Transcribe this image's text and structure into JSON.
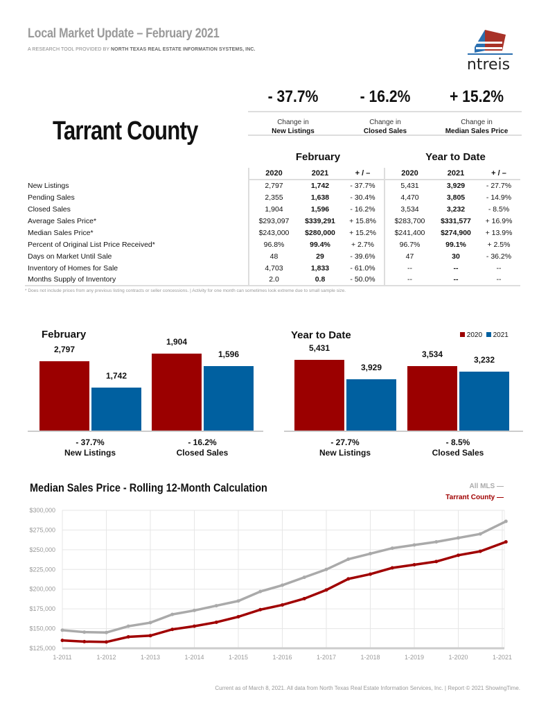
{
  "header": {
    "title": "Local Market Update – February 2021",
    "subtitle_prefix": "A RESEARCH TOOL PROVIDED BY ",
    "subtitle_org": "NORTH TEXAS REAL ESTATE INFORMATION SYSTEMS, INC.",
    "logo_text": "ntreis",
    "area": "Tarrant County"
  },
  "kpis": [
    {
      "value": "- 37.7%",
      "line1": "Change in",
      "line2": "New Listings"
    },
    {
      "value": "- 16.2%",
      "line1": "Change in",
      "line2": "Closed Sales"
    },
    {
      "value": "+ 15.2%",
      "line1": "Change in",
      "line2": "Median Sales Price"
    }
  ],
  "table": {
    "group1": "February",
    "group2": "Year to Date",
    "columns": [
      "2020",
      "2021",
      "+ / –",
      "2020",
      "2021",
      "+ / –"
    ],
    "rows": [
      {
        "label": "New Listings",
        "v": [
          "2,797",
          "1,742",
          "- 37.7%",
          "5,431",
          "3,929",
          "- 27.7%"
        ]
      },
      {
        "label": "Pending Sales",
        "v": [
          "2,355",
          "1,638",
          "- 30.4%",
          "4,470",
          "3,805",
          "- 14.9%"
        ]
      },
      {
        "label": "Closed Sales",
        "v": [
          "1,904",
          "1,596",
          "- 16.2%",
          "3,534",
          "3,232",
          "- 8.5%"
        ]
      },
      {
        "label": "Average Sales Price*",
        "v": [
          "$293,097",
          "$339,291",
          "+ 15.8%",
          "$283,700",
          "$331,577",
          "+ 16.9%"
        ]
      },
      {
        "label": "Median Sales Price*",
        "v": [
          "$243,000",
          "$280,000",
          "+ 15.2%",
          "$241,400",
          "$274,900",
          "+ 13.9%"
        ]
      },
      {
        "label": "Percent of Original List Price Received*",
        "v": [
          "96.8%",
          "99.4%",
          "+ 2.7%",
          "96.7%",
          "99.1%",
          "+ 2.5%"
        ]
      },
      {
        "label": "Days on Market Until Sale",
        "v": [
          "48",
          "29",
          "- 39.6%",
          "47",
          "30",
          "- 36.2%"
        ]
      },
      {
        "label": "Inventory of Homes for Sale",
        "v": [
          "4,703",
          "1,833",
          "- 61.0%",
          "--",
          "--",
          "--"
        ]
      },
      {
        "label": "Months Supply of Inventory",
        "v": [
          "2.0",
          "0.8",
          "- 50.0%",
          "--",
          "--",
          "--"
        ]
      }
    ],
    "note": "* Does not include prices from any previous listing contracts or seller concessions. | Activity for one month can sometimes look extreme due to small sample size."
  },
  "chart_data": [
    {
      "type": "bar",
      "title": "February",
      "colors": {
        "2020": "#9b0000",
        "2021": "#0060a0"
      },
      "groups": [
        {
          "change": "- 37.7%",
          "label": "New Listings",
          "values": [
            2797,
            1742
          ],
          "labels": [
            "2,797",
            "1,742"
          ]
        },
        {
          "change": "- 16.2%",
          "label": "Closed Sales",
          "values": [
            1904,
            1596
          ],
          "labels": [
            "1,904",
            "1,596"
          ]
        }
      ]
    },
    {
      "type": "bar",
      "title": "Year to Date",
      "legend": [
        "2020",
        "2021"
      ],
      "legend_position": "top-right",
      "colors": {
        "2020": "#9b0000",
        "2021": "#0060a0"
      },
      "groups": [
        {
          "change": "- 27.7%",
          "label": "New Listings",
          "values": [
            5431,
            3929
          ],
          "labels": [
            "5,431",
            "3,929"
          ]
        },
        {
          "change": "- 8.5%",
          "label": "Closed Sales",
          "values": [
            3534,
            3232
          ],
          "labels": [
            "3,534",
            "3,232"
          ]
        }
      ]
    },
    {
      "type": "line",
      "title": "Median Sales Price - Rolling 12-Month Calculation",
      "ylim": [
        125000,
        300000
      ],
      "grid": true,
      "legend_position": "top-right",
      "yticks": [
        "$300,000",
        "$275,000",
        "$250,000",
        "$225,000",
        "$200,000",
        "$175,000",
        "$150,000",
        "$125,000"
      ],
      "xticks": [
        "1-2011",
        "1-2012",
        "1-2013",
        "1-2014",
        "1-2015",
        "1-2016",
        "1-2017",
        "1-2018",
        "1-2019",
        "1-2020",
        "1-2021"
      ],
      "x": [
        "2011-01",
        "2011-07",
        "2012-01",
        "2012-07",
        "2013-01",
        "2013-07",
        "2014-01",
        "2014-07",
        "2015-01",
        "2015-07",
        "2016-01",
        "2016-07",
        "2017-01",
        "2017-07",
        "2018-01",
        "2018-07",
        "2019-01",
        "2019-07",
        "2020-01",
        "2020-07",
        "2021-02"
      ],
      "series": [
        {
          "name": "All MLS",
          "legend": "All MLS  —",
          "color": "#aaaaaa",
          "values": [
            148000,
            145500,
            145000,
            153000,
            157500,
            168000,
            173000,
            179000,
            185000,
            197000,
            205000,
            215000,
            225000,
            238000,
            245000,
            252000,
            256000,
            260000,
            265000,
            270000,
            286000
          ]
        },
        {
          "name": "Tarrant County",
          "legend": "Tarrant County  —",
          "color": "#a00000",
          "values": [
            135000,
            133500,
            133000,
            139500,
            141000,
            149000,
            153000,
            158000,
            165000,
            174000,
            180000,
            188000,
            199000,
            213000,
            219000,
            227000,
            231000,
            235000,
            243000,
            248000,
            260000
          ]
        }
      ]
    }
  ],
  "footer": "Current as of March 8, 2021. All data from North Texas Real Estate Information Services, Inc. | Report © 2021 ShowingTime."
}
